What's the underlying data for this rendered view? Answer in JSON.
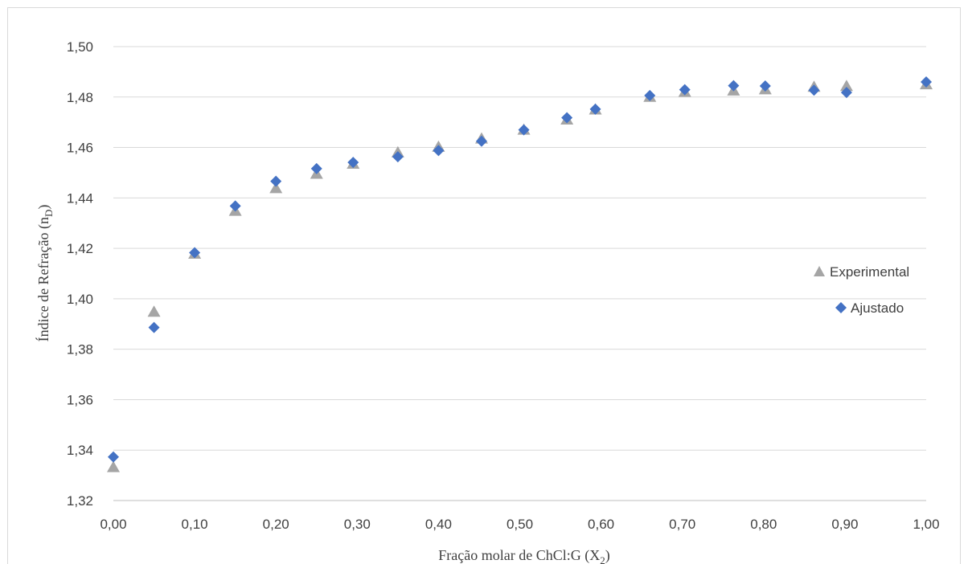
{
  "chart_data": {
    "type": "scatter",
    "title": "",
    "xlabel_main": "Fração molar de ChCl:G (X",
    "xlabel_sub": "2",
    "xlabel_end": ")",
    "ylabel_main": "Índice de Refração (n",
    "ylabel_sub": "D",
    "ylabel_end": ")",
    "xlim": [
      0,
      1
    ],
    "ylim": [
      1.32,
      1.5
    ],
    "x_ticks": [
      "0,00",
      "0,10",
      "0,20",
      "0,30",
      "0,40",
      "0,50",
      "0,60",
      "0,70",
      "0,80",
      "0,90",
      "1,00"
    ],
    "y_ticks": [
      "1,32",
      "1,34",
      "1,36",
      "1,38",
      "1,40",
      "1,42",
      "1,44",
      "1,46",
      "1,48",
      "1,50"
    ],
    "grid": "horizontal",
    "legend_position": "right",
    "series": [
      {
        "name": "Experimental",
        "marker": "triangle",
        "color": "#a5a5a5",
        "x": [
          0.0,
          0.05,
          0.1,
          0.15,
          0.2,
          0.25,
          0.295,
          0.35,
          0.4,
          0.453,
          0.505,
          0.558,
          0.593,
          0.66,
          0.703,
          0.763,
          0.802,
          0.862,
          0.902,
          1.0
        ],
        "y": [
          1.3332,
          1.3948,
          1.4178,
          1.4348,
          1.4438,
          1.4495,
          1.4535,
          1.458,
          1.4602,
          1.4635,
          1.467,
          1.471,
          1.475,
          1.48,
          1.482,
          1.4825,
          1.483,
          1.484,
          1.4843,
          1.485
        ]
      },
      {
        "name": "Ajustado",
        "marker": "diamond",
        "color": "#4472c4",
        "x": [
          0.0,
          0.05,
          0.1,
          0.15,
          0.2,
          0.25,
          0.295,
          0.35,
          0.4,
          0.453,
          0.505,
          0.558,
          0.593,
          0.66,
          0.703,
          0.763,
          0.802,
          0.862,
          0.902,
          1.0
        ],
        "y": [
          1.3373,
          1.3886,
          1.4183,
          1.4368,
          1.4466,
          1.4516,
          1.4541,
          1.4563,
          1.4588,
          1.4625,
          1.467,
          1.4718,
          1.4752,
          1.4806,
          1.4829,
          1.4845,
          1.4844,
          1.4827,
          1.4818,
          1.486
        ]
      }
    ]
  }
}
